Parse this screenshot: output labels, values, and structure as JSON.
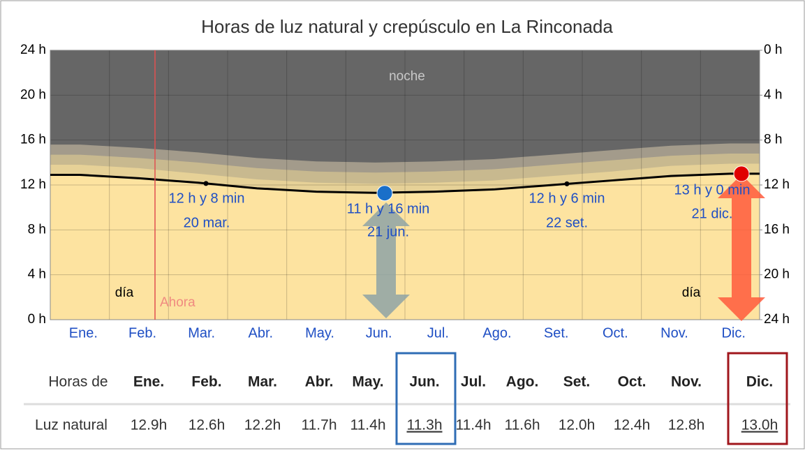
{
  "chart_data": {
    "type": "daylight",
    "title": "Horas de luz natural y crepúsculo en La Rinconada",
    "categories": [
      "Ene.",
      "Feb.",
      "Mar.",
      "Abr.",
      "May.",
      "Jun.",
      "Jul.",
      "Ago.",
      "Set.",
      "Oct.",
      "Nov.",
      "Dic."
    ],
    "series": [
      {
        "name": "Luz natural",
        "color": "#fde3a0",
        "values": [
          12.9,
          12.6,
          12.2,
          11.7,
          11.4,
          11.3,
          11.4,
          11.6,
          12.0,
          12.4,
          12.8,
          13.0
        ],
        "value_labels": [
          "12.9h",
          "12.6h",
          "12.2h",
          "11.7h",
          "11.4h",
          "11.3h",
          "11.4h",
          "11.6h",
          "12.0h",
          "12.4h",
          "12.8h",
          "13.0h"
        ]
      }
    ],
    "twilight_bands": [
      {
        "color": "#a39b8b",
        "values": [
          15.6,
          15.3,
          14.9,
          14.4,
          14.1,
          14.0,
          14.1,
          14.3,
          14.7,
          15.1,
          15.5,
          15.7
        ]
      },
      {
        "color": "#c8b98f",
        "values": [
          14.7,
          14.4,
          14.0,
          13.5,
          13.2,
          13.1,
          13.2,
          13.4,
          13.8,
          14.2,
          14.6,
          14.8
        ]
      },
      {
        "color": "#e6d197",
        "values": [
          13.8,
          13.5,
          13.0,
          12.5,
          12.2,
          12.1,
          12.2,
          12.4,
          12.8,
          13.2,
          13.7,
          13.9
        ]
      }
    ],
    "night_color": "#666666",
    "night_label": "noche",
    "day_label": "día",
    "now_label": "Ahora",
    "ylim": [
      0,
      24
    ],
    "yticks": [
      {
        "value": 0,
        "label": "0 h"
      },
      {
        "value": 4,
        "label": "4 h"
      },
      {
        "value": 8,
        "label": "8 h"
      },
      {
        "value": 12,
        "label": "12 h"
      },
      {
        "value": 16,
        "label": "16 h"
      },
      {
        "value": 20,
        "label": "20 h"
      },
      {
        "value": 24,
        "label": "24 h"
      }
    ],
    "y2lim": [
      24,
      0
    ],
    "y2ticks": [
      {
        "value": 0,
        "label": "0 h"
      },
      {
        "value": 4,
        "label": "4 h"
      },
      {
        "value": 8,
        "label": "8 h"
      },
      {
        "value": 12,
        "label": "12 h"
      },
      {
        "value": 16,
        "label": "16 h"
      },
      {
        "value": 20,
        "label": "20 h"
      },
      {
        "value": 24,
        "label": "24 h"
      }
    ],
    "grid": true,
    "annotations": [
      {
        "text": "12 h y 8 min",
        "date": "20 mar.",
        "value": 12.13
      },
      {
        "text": "11 h y 16 min",
        "date": "21 jun.",
        "value": 11.27
      },
      {
        "text": "12 h y 6 min",
        "date": "22 set.",
        "value": 12.1
      },
      {
        "text": "13 h y 0 min",
        "date": "21 dic.",
        "value": 13.0
      }
    ]
  },
  "table": {
    "header": "Horas de",
    "row_label": "Luz natural"
  }
}
